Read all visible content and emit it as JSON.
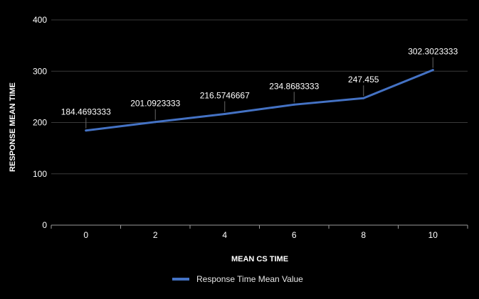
{
  "chart_data": {
    "type": "line",
    "xlabel": "MEAN CS TIME",
    "ylabel": "RESPONSE MEAN TIME",
    "x": [
      0,
      2,
      4,
      6,
      8,
      10
    ],
    "x_ticks": [
      "0",
      "2",
      "4",
      "6",
      "8",
      "10"
    ],
    "ylim": [
      0,
      400
    ],
    "y_ticks": [
      "0",
      "100",
      "200",
      "300",
      "400"
    ],
    "grid": true,
    "legend_position": "bottom",
    "series": [
      {
        "name": "Response Time Mean Value",
        "color": "#4472C4",
        "values": [
          184.4693333,
          201.0923333,
          216.5746667,
          234.8683333,
          247.455,
          302.3023333
        ],
        "labels": [
          "184.4693333",
          "201.0923333",
          "216.5746667",
          "234.8683333",
          "247.455",
          "302.3023333"
        ]
      }
    ]
  }
}
